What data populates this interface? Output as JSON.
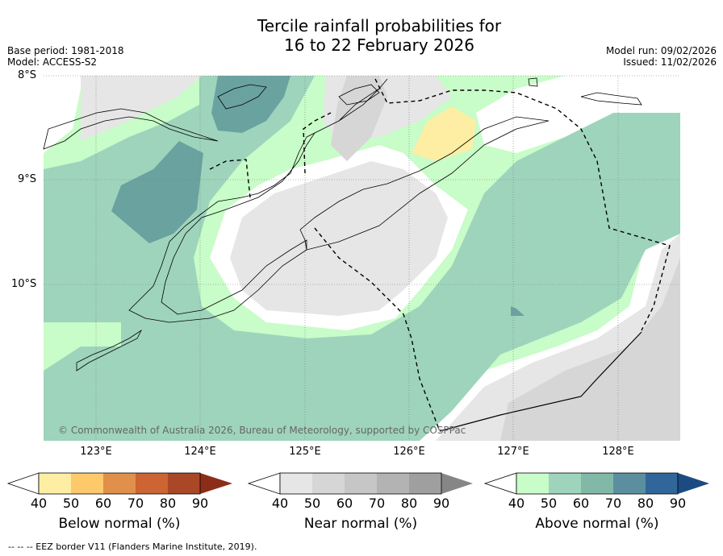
{
  "title_line1": "Tercile rainfall probabilities for",
  "title_line2": "16 to 22 February 2026",
  "base_period": "Base period: 1981-2018",
  "model": "Model: ACCESS-S2",
  "model_run": "Model run: 09/02/2026",
  "issued": "Issued: 11/02/2026",
  "lat_labels": [
    "8°S",
    "9°S",
    "10°S"
  ],
  "lon_labels": [
    "123°E",
    "124°E",
    "125°E",
    "126°E",
    "127°E",
    "128°E"
  ],
  "copyright": "© Commonwealth of Australia 2026, Bureau of Meteorology, supported by COSPPac",
  "footer": "--  --  -- EEZ border V11 (Flanders Marine Institute, 2019).",
  "colorbars": [
    {
      "title": "Below normal (%)",
      "ticks": [
        "40",
        "50",
        "60",
        "70",
        "80",
        "90"
      ],
      "colors": [
        "#fdeea3",
        "#fdc96a",
        "#e0904a",
        "#cc6433",
        "#a94726",
        "#8c2d1a"
      ]
    },
    {
      "title": "Near normal (%)",
      "ticks": [
        "40",
        "50",
        "60",
        "70",
        "80",
        "90"
      ],
      "colors": [
        "#e6e6e6",
        "#d6d6d6",
        "#c6c6c6",
        "#b3b3b3",
        "#9f9f9f",
        "#868686"
      ]
    },
    {
      "title": "Above normal (%)",
      "ticks": [
        "40",
        "50",
        "60",
        "70",
        "80",
        "90"
      ],
      "colors": [
        "#c8fcc8",
        "#9ed4bc",
        "#82b8a8",
        "#5b8fa0",
        "#31669a",
        "#1b4b80"
      ]
    }
  ]
}
